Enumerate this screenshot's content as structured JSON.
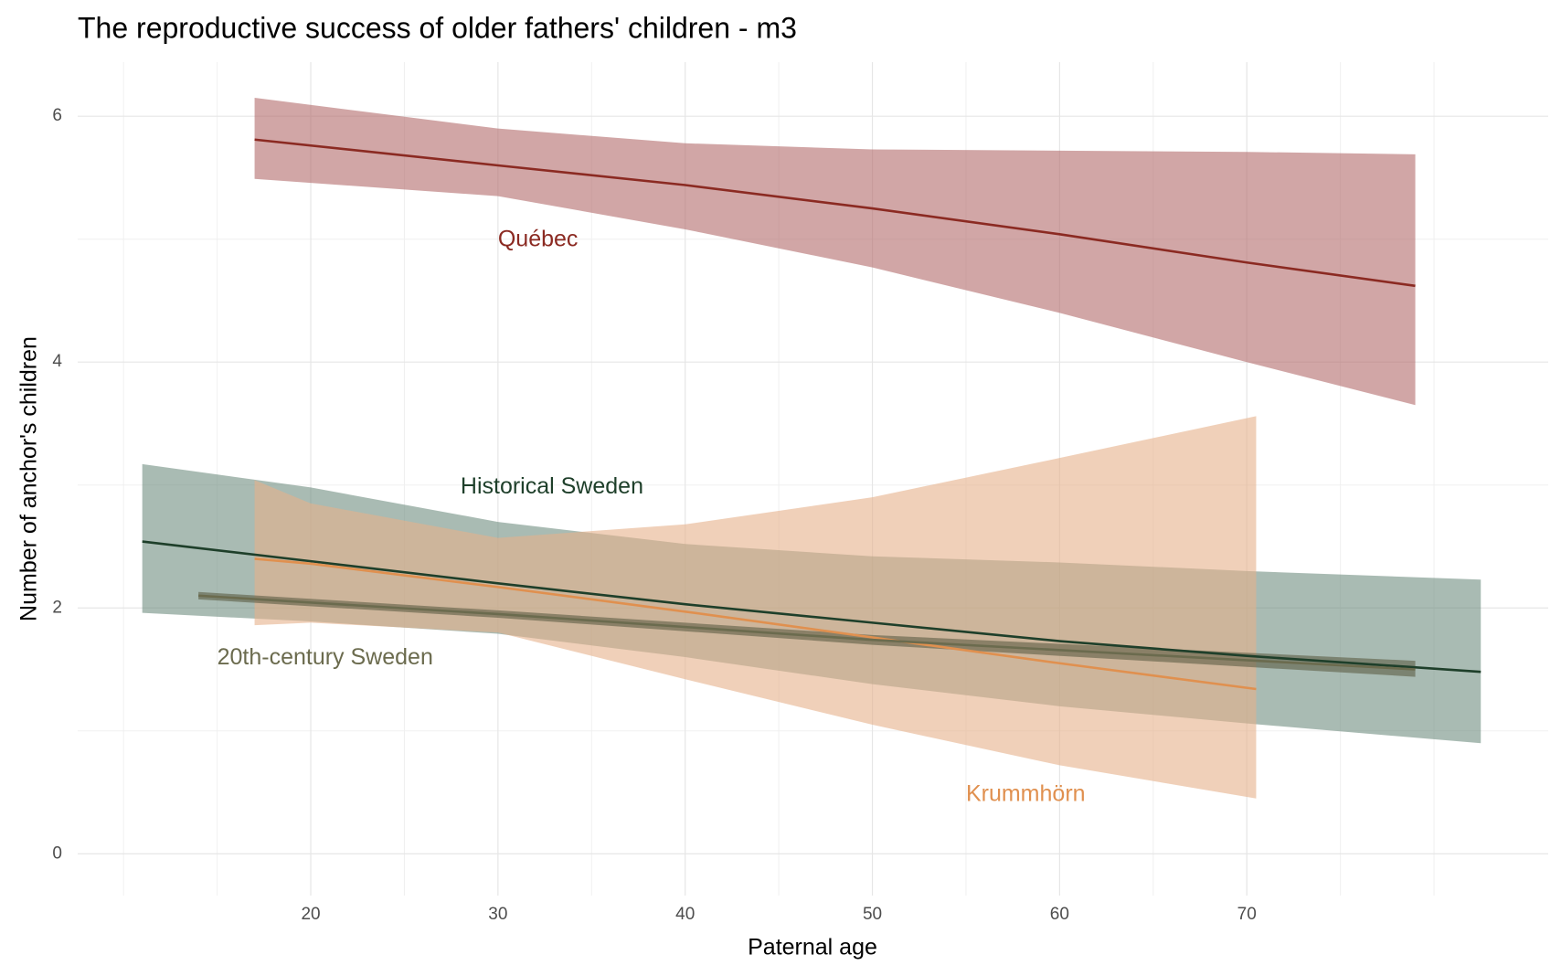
{
  "chart_data": {
    "type": "line_ribbon",
    "title": "The reproductive success of older fathers' children - m3",
    "x_label": "Paternal age",
    "y_label": "Number of anchor's children",
    "xlim": [
      7.55,
      86.1
    ],
    "ylim": [
      -0.34,
      6.44
    ],
    "xticks": [
      20,
      30,
      40,
      50,
      60,
      70
    ],
    "yticks": [
      0,
      2,
      4,
      6
    ],
    "xminorticks": [
      10,
      15,
      25,
      35,
      45,
      55,
      65,
      75,
      80
    ],
    "yminorticks": [
      1,
      3,
      5
    ],
    "grid": true,
    "series": [
      {
        "name": "Québec",
        "color": "#8b2a22",
        "fill": "#b36b6b",
        "label_x": 30,
        "label_y": 4.99,
        "x": [
          17,
          30,
          40,
          50,
          60,
          70,
          79
        ],
        "values": [
          5.81,
          5.6,
          5.44,
          5.25,
          5.04,
          4.81,
          4.62
        ],
        "upper": [
          6.15,
          5.9,
          5.78,
          5.73,
          5.72,
          5.71,
          5.69
        ],
        "lower": [
          5.49,
          5.35,
          5.08,
          4.77,
          4.4,
          4.0,
          3.65
        ]
      },
      {
        "name": "Historical Sweden",
        "color": "#1e3f2a",
        "fill": "#6f8d80",
        "label_x": 28,
        "label_y": 2.98,
        "x": [
          11,
          20,
          30,
          40,
          50,
          60,
          70,
          82.5
        ],
        "values": [
          2.54,
          2.38,
          2.2,
          2.03,
          1.88,
          1.73,
          1.61,
          1.48
        ],
        "upper": [
          3.17,
          2.98,
          2.7,
          2.52,
          2.42,
          2.37,
          2.3,
          2.23
        ],
        "lower": [
          1.96,
          1.89,
          1.79,
          1.6,
          1.38,
          1.2,
          1.06,
          0.9
        ]
      },
      {
        "name": "Krummhörn",
        "color": "#e0904f",
        "fill": "#e6b08a",
        "label_x": 55,
        "label_y": 0.48,
        "x": [
          17,
          20,
          30,
          40,
          50,
          60,
          70.5
        ],
        "values": [
          2.4,
          2.36,
          2.17,
          1.97,
          1.76,
          1.55,
          1.34
        ],
        "upper": [
          3.04,
          2.85,
          2.57,
          2.68,
          2.9,
          3.22,
          3.56
        ],
        "lower": [
          1.86,
          1.88,
          1.8,
          1.42,
          1.05,
          0.72,
          0.45
        ]
      },
      {
        "name": "20th-century Sweden",
        "color": "#6b6b4e",
        "fill": "#5e5e45",
        "label_x": 15,
        "label_y": 1.59,
        "x": [
          14,
          30,
          50,
          79
        ],
        "values": [
          2.1,
          1.95,
          1.74,
          1.5
        ],
        "upper": [
          2.13,
          1.98,
          1.78,
          1.57
        ],
        "lower": [
          2.07,
          1.92,
          1.7,
          1.44
        ]
      }
    ]
  }
}
